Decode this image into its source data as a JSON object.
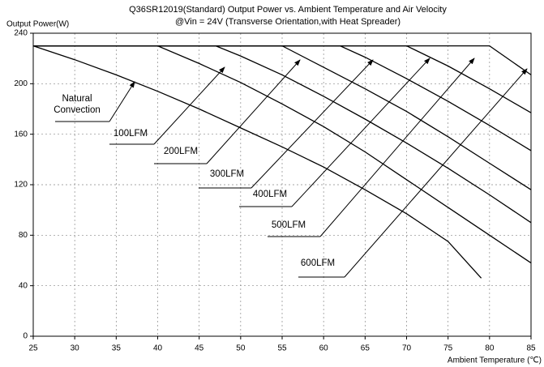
{
  "chart_data": {
    "type": "line",
    "title": "Q36SR12019(Standard) Output Power vs. Ambient Temperature and Air Velocity",
    "subtitle": "@Vin = 24V (Transverse Orientation,with Heat Spreader)",
    "y_label": "Output Power(W)",
    "x_label": "Ambient Temperature (℃)",
    "xlim": [
      25,
      85
    ],
    "ylim": [
      0,
      240
    ],
    "xticks": [
      25,
      30,
      35,
      40,
      45,
      50,
      55,
      60,
      65,
      70,
      75,
      80,
      85
    ],
    "yticks": [
      0,
      40,
      80,
      120,
      160,
      200,
      240
    ],
    "grid": true,
    "series": [
      {
        "name": "Natural Convection",
        "color": "#000000",
        "x": [
          25,
          30,
          35,
          40,
          45,
          50,
          55,
          60,
          65,
          70,
          75,
          79
        ],
        "values": [
          230,
          219,
          207,
          194,
          180,
          165,
          150,
          134,
          116,
          97,
          75,
          46
        ]
      },
      {
        "name": "100LFM",
        "color": "#000000",
        "x": [
          25,
          40,
          45,
          50,
          55,
          60,
          65,
          70,
          75,
          80,
          85
        ],
        "values": [
          230,
          230,
          216,
          201,
          184,
          166,
          146,
          124,
          102,
          80,
          58
        ]
      },
      {
        "name": "200LFM",
        "color": "#000000",
        "x": [
          25,
          47,
          50,
          55,
          60,
          65,
          70,
          75,
          80,
          85
        ],
        "values": [
          230,
          230,
          222,
          207,
          190,
          172,
          153,
          133,
          112,
          90
        ]
      },
      {
        "name": "300LFM",
        "color": "#000000",
        "x": [
          25,
          55,
          60,
          65,
          70,
          75,
          80,
          85
        ],
        "values": [
          230,
          230,
          213,
          196,
          178,
          158,
          137,
          116
        ]
      },
      {
        "name": "400LFM",
        "color": "#000000",
        "x": [
          25,
          62,
          65,
          70,
          75,
          80,
          85
        ],
        "values": [
          230,
          230,
          221,
          204,
          186,
          167,
          147
        ]
      },
      {
        "name": "500LFM",
        "color": "#000000",
        "x": [
          25,
          70,
          75,
          80,
          85
        ],
        "values": [
          230,
          230,
          214,
          196,
          177
        ]
      },
      {
        "name": "600LFM",
        "color": "#000000",
        "x": [
          25,
          80,
          85
        ],
        "values": [
          230,
          230,
          207
        ]
      }
    ]
  }
}
